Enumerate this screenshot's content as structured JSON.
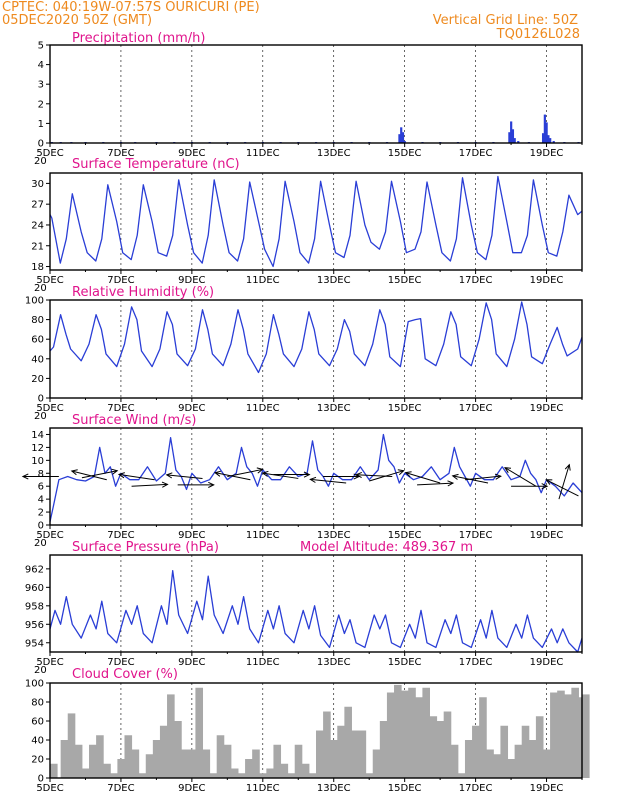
{
  "header": {
    "left_line1": "CPTEC:   040:19W-07:57S   OURICURI (PE)",
    "left_line2": "05DEC2020 50Z (GMT)",
    "right_line1": "Vertical Grid Line: 50Z",
    "right_line2": "TQ0126L028"
  },
  "colors": {
    "header": "#ee8a1f",
    "title": "#e0148c",
    "series": "#2a3ed6",
    "cloud": "#a8a8a8",
    "arrows": "#000000"
  },
  "x_tick_labels": [
    "5DEC",
    "7DEC",
    "9DEC",
    "11DEC",
    "13DEC",
    "15DEC",
    "17DEC",
    "19DEC"
  ],
  "panel_stub_label": "20",
  "chart_data": [
    {
      "id": "precip",
      "type": "bar",
      "title": "Precipitation (mm/h)",
      "x_unit": "days since 5DEC 00Z",
      "xlim": [
        0,
        15
      ],
      "ylim": [
        0,
        5
      ],
      "yticks": [
        0,
        1,
        2,
        3,
        4,
        5
      ],
      "x": [
        0.05,
        0.3,
        0.6,
        1.0,
        1.5,
        2.0,
        2.4,
        3.0,
        3.5,
        4.0,
        4.5,
        5.0,
        5.5,
        6.0,
        6.5,
        7.0,
        7.5,
        8.0,
        8.5,
        9.0,
        9.5,
        9.85,
        9.9,
        9.95,
        10.0,
        10.5,
        11.0,
        11.5,
        12.0,
        12.5,
        12.95,
        13.0,
        13.05,
        13.1,
        13.2,
        13.5,
        13.9,
        13.95,
        14.0,
        14.05,
        14.1,
        14.2,
        14.5,
        14.9
      ],
      "values": [
        0.05,
        0.05,
        0.05,
        0.05,
        0.05,
        0.05,
        0.05,
        0.05,
        0.05,
        0.05,
        0.05,
        0.05,
        0.05,
        0.05,
        0.05,
        0.05,
        0.05,
        0.05,
        0.05,
        0.05,
        0.05,
        0.45,
        0.8,
        0.55,
        0.1,
        0.05,
        0.05,
        0.05,
        0.05,
        0.05,
        0.55,
        1.1,
        0.7,
        0.25,
        0.1,
        0.05,
        0.5,
        1.45,
        1.05,
        0.4,
        0.25,
        0.1,
        0.05,
        0.05
      ]
    },
    {
      "id": "temp",
      "type": "line",
      "title": "Surface Temperature (nC)",
      "x_unit": "days since 5DEC 00Z",
      "xlim": [
        0,
        15
      ],
      "ylim": [
        17.5,
        31.5
      ],
      "yticks": [
        18,
        21,
        24,
        27,
        30
      ],
      "series": [
        {
          "x": [
            0.0,
            0.05,
            0.29,
            0.46,
            0.63,
            0.88,
            1.05,
            1.29,
            1.46,
            1.63,
            1.88,
            2.05,
            2.29,
            2.46,
            2.63,
            2.88,
            3.05,
            3.29,
            3.46,
            3.63,
            3.88,
            4.05,
            4.29,
            4.46,
            4.63,
            4.88,
            5.05,
            5.29,
            5.46,
            5.63,
            5.88,
            6.05,
            6.29,
            6.46,
            6.63,
            6.88,
            7.05,
            7.29,
            7.46,
            7.63,
            7.88,
            8.05,
            8.29,
            8.46,
            8.63,
            8.88,
            9.05,
            9.29,
            9.46,
            9.63,
            9.88,
            10.05,
            10.29,
            10.46,
            10.63,
            10.88,
            11.05,
            11.29,
            11.46,
            11.63,
            11.88,
            12.05,
            12.29,
            12.46,
            12.63,
            12.88,
            13.05,
            13.29,
            13.46,
            13.63,
            13.88,
            14.05,
            14.29,
            14.46,
            14.63,
            14.88,
            15.0
          ],
          "values": [
            25.5,
            25.0,
            18.5,
            22.0,
            28.5,
            23.0,
            20.0,
            18.8,
            22.0,
            29.8,
            24.5,
            20.0,
            19.0,
            22.5,
            29.8,
            24.5,
            20.0,
            19.5,
            22.5,
            30.5,
            24.0,
            20.0,
            18.5,
            22.5,
            30.5,
            24.0,
            20.0,
            18.8,
            22.0,
            30.2,
            24.5,
            20.5,
            18.0,
            22.0,
            30.3,
            24.5,
            20.0,
            18.5,
            22.0,
            30.3,
            24.0,
            20.0,
            19.3,
            22.5,
            30.3,
            24.0,
            21.5,
            20.5,
            23.0,
            30.3,
            24.5,
            20.0,
            20.5,
            23.0,
            30.2,
            24.0,
            20.0,
            18.8,
            22.0,
            30.8,
            24.0,
            20.0,
            19.0,
            22.5,
            31.0,
            24.5,
            20.0,
            20.0,
            22.5,
            30.5,
            24.0,
            20.0,
            19.5,
            23.0,
            28.3,
            25.5,
            26.0
          ]
        }
      ]
    },
    {
      "id": "rh",
      "type": "line",
      "title": "Relative Humidity (%)",
      "x_unit": "days since 5DEC 00Z",
      "xlim": [
        0,
        15
      ],
      "ylim": [
        0,
        100
      ],
      "yticks": [
        0,
        20,
        40,
        60,
        80,
        100
      ],
      "series": [
        {
          "x": [
            0.0,
            0.1,
            0.3,
            0.45,
            0.58,
            0.88,
            1.1,
            1.3,
            1.45,
            1.58,
            1.88,
            2.1,
            2.3,
            2.45,
            2.58,
            2.88,
            3.1,
            3.3,
            3.45,
            3.58,
            3.88,
            4.1,
            4.3,
            4.45,
            4.58,
            4.88,
            5.1,
            5.3,
            5.45,
            5.58,
            5.88,
            6.1,
            6.3,
            6.45,
            6.58,
            6.88,
            7.1,
            7.3,
            7.45,
            7.58,
            7.88,
            8.1,
            8.3,
            8.45,
            8.58,
            8.88,
            9.1,
            9.3,
            9.45,
            9.58,
            9.88,
            10.1,
            10.3,
            10.45,
            10.58,
            10.88,
            11.1,
            11.3,
            11.45,
            11.58,
            11.88,
            12.1,
            12.3,
            12.45,
            12.58,
            12.88,
            13.1,
            13.3,
            13.45,
            13.58,
            13.88,
            14.1,
            14.3,
            14.45,
            14.58,
            14.88,
            15.0
          ],
          "values": [
            48.0,
            52.0,
            85.0,
            65.0,
            50.0,
            38.0,
            55.0,
            85.0,
            70.0,
            45.0,
            32.0,
            55.0,
            93.0,
            80.0,
            48.0,
            32.0,
            50.0,
            88.0,
            75.0,
            45.0,
            33.0,
            50.0,
            90.0,
            70.0,
            45.0,
            33.0,
            55.0,
            90.0,
            70.0,
            45.0,
            26.0,
            45.0,
            85.0,
            65.0,
            45.0,
            32.0,
            50.0,
            88.0,
            70.0,
            45.0,
            33.0,
            50.0,
            80.0,
            68.0,
            45.0,
            33.0,
            55.0,
            90.0,
            75.0,
            42.0,
            32.0,
            78.0,
            80.0,
            81.0,
            40.0,
            33.0,
            55.0,
            88.0,
            75.0,
            42.0,
            33.0,
            60.0,
            97.0,
            80.0,
            45.0,
            32.0,
            60.0,
            98.0,
            75.0,
            42.0,
            35.0,
            55.0,
            72.0,
            55.0,
            43.0,
            50.0,
            62.0
          ]
        }
      ]
    },
    {
      "id": "wind",
      "type": "line",
      "title": "Surface Wind (m/s)",
      "x_unit": "days since 5DEC 00Z",
      "xlim": [
        0,
        15
      ],
      "ylim": [
        0,
        15
      ],
      "yticks": [
        0,
        2,
        4,
        6,
        8,
        10,
        12,
        14
      ],
      "series": [
        {
          "x": [
            0.0,
            0.1,
            0.25,
            0.5,
            0.75,
            1.0,
            1.25,
            1.4,
            1.55,
            1.7,
            1.85,
            2.0,
            2.25,
            2.5,
            2.75,
            3.0,
            3.25,
            3.4,
            3.55,
            3.7,
            3.85,
            4.0,
            4.25,
            4.5,
            4.75,
            5.0,
            5.25,
            5.4,
            5.55,
            5.7,
            5.85,
            6.0,
            6.25,
            6.5,
            6.75,
            7.0,
            7.25,
            7.4,
            7.55,
            7.7,
            7.85,
            8.0,
            8.25,
            8.5,
            8.75,
            9.0,
            9.25,
            9.4,
            9.55,
            9.7,
            9.85,
            10.0,
            10.25,
            10.5,
            10.75,
            11.0,
            11.25,
            11.4,
            11.55,
            11.7,
            11.85,
            12.0,
            12.25,
            12.5,
            12.75,
            13.0,
            13.25,
            13.4,
            13.55,
            13.7,
            13.85,
            14.0,
            14.25,
            14.5,
            14.75,
            15.0
          ],
          "values": [
            0.5,
            3.0,
            7.0,
            7.5,
            7.0,
            6.8,
            7.5,
            12.0,
            8.0,
            9.0,
            6.0,
            8.0,
            7.0,
            7.0,
            9.0,
            6.8,
            8.0,
            13.5,
            8.5,
            7.5,
            5.5,
            8.0,
            6.5,
            7.0,
            9.0,
            7.0,
            8.0,
            12.0,
            9.0,
            8.0,
            6.0,
            8.5,
            7.0,
            7.0,
            9.0,
            7.5,
            8.0,
            13.0,
            8.5,
            7.5,
            6.0,
            8.0,
            7.0,
            7.0,
            9.0,
            7.0,
            8.5,
            14.0,
            10.0,
            9.0,
            6.5,
            8.0,
            7.0,
            7.5,
            9.0,
            7.0,
            8.0,
            12.0,
            9.0,
            7.5,
            6.0,
            8.0,
            7.0,
            7.0,
            9.0,
            7.0,
            7.5,
            10.0,
            8.0,
            7.0,
            5.0,
            7.0,
            6.0,
            4.5,
            6.5,
            5.0
          ]
        }
      ],
      "wind_vectors": {
        "x": [
          0.25,
          0.9,
          1.6,
          2.3,
          2.95,
          3.6,
          4.3,
          5.0,
          5.65,
          6.3,
          7.0,
          7.7,
          8.35,
          9.0,
          9.65,
          10.35,
          11.0,
          11.7,
          12.35,
          13.0,
          13.7,
          14.35,
          14.9
        ],
        "u": [
          -1.0,
          1.0,
          -1.0,
          1.0,
          -1.0,
          1.0,
          -1.0,
          1.0,
          -1.0,
          1.0,
          -1.0,
          1.0,
          -1.0,
          1.0,
          -1.0,
          1.0,
          -1.0,
          1.0,
          -1.0,
          1.0,
          -1.0,
          0.3,
          -1.0
        ],
        "v": [
          0.0,
          0.2,
          0.25,
          0.05,
          0.15,
          0.0,
          0.1,
          0.2,
          0.2,
          0.0,
          0.15,
          0.0,
          0.1,
          0.3,
          0.05,
          0.05,
          0.3,
          0.1,
          0.2,
          0.0,
          0.6,
          1.0,
          0.5
        ],
        "y": [
          7.5,
          7.3,
          7.0,
          6.0,
          7.0,
          6.2,
          7.2,
          7.5,
          7.0,
          7.8,
          7.2,
          7.5,
          6.5,
          6.8,
          7.5,
          6.2,
          6.5,
          7.0,
          6.5,
          6.0,
          6.0,
          4.0,
          4.5
        ]
      }
    },
    {
      "id": "pres",
      "type": "line",
      "title": "Surface Pressure (hPa)",
      "annotation": "Model Altitude: 489.367 m",
      "x_unit": "days since 5DEC 00Z",
      "xlim": [
        0,
        15
      ],
      "ylim": [
        953.0,
        963.5
      ],
      "yticks": [
        954,
        956,
        958,
        960,
        962
      ],
      "series": [
        {
          "x": [
            0.0,
            0.14,
            0.3,
            0.46,
            0.63,
            0.88,
            1.14,
            1.3,
            1.46,
            1.63,
            1.88,
            2.14,
            2.3,
            2.46,
            2.63,
            2.88,
            3.14,
            3.3,
            3.46,
            3.63,
            3.88,
            4.14,
            4.3,
            4.46,
            4.63,
            4.88,
            5.14,
            5.3,
            5.46,
            5.63,
            5.88,
            6.14,
            6.3,
            6.46,
            6.63,
            6.88,
            7.14,
            7.3,
            7.46,
            7.63,
            7.88,
            8.14,
            8.3,
            8.46,
            8.63,
            8.88,
            9.14,
            9.3,
            9.46,
            9.63,
            9.88,
            10.14,
            10.3,
            10.46,
            10.63,
            10.88,
            11.14,
            11.3,
            11.46,
            11.63,
            11.88,
            12.14,
            12.3,
            12.46,
            12.63,
            12.88,
            13.14,
            13.3,
            13.46,
            13.63,
            13.88,
            14.14,
            14.3,
            14.46,
            14.63,
            14.88,
            15.0
          ],
          "values": [
            955.5,
            957.5,
            956.0,
            959.0,
            956.0,
            954.5,
            957.0,
            955.5,
            958.5,
            955.0,
            954.0,
            957.5,
            956.0,
            958.0,
            955.0,
            954.0,
            958.0,
            956.0,
            961.8,
            957.0,
            955.0,
            958.5,
            956.5,
            961.2,
            957.0,
            955.0,
            958.0,
            956.0,
            959.0,
            955.5,
            954.0,
            957.5,
            955.5,
            958.0,
            955.0,
            954.0,
            957.5,
            955.5,
            958.0,
            954.8,
            953.5,
            957.0,
            955.0,
            956.5,
            954.0,
            953.5,
            957.0,
            955.5,
            957.0,
            954.0,
            953.5,
            956.0,
            954.5,
            957.5,
            954.0,
            953.5,
            956.5,
            955.0,
            957.0,
            954.0,
            953.5,
            956.5,
            954.5,
            957.5,
            954.5,
            953.5,
            956.0,
            954.5,
            957.0,
            954.5,
            953.5,
            955.5,
            954.0,
            955.5,
            954.0,
            953.0,
            954.5
          ]
        }
      ]
    },
    {
      "id": "cloud",
      "type": "area",
      "title": "Cloud Cover (%)",
      "x_unit": "days since 5DEC 00Z",
      "xlim": [
        0,
        15
      ],
      "ylim": [
        0,
        100
      ],
      "yticks": [
        0,
        20,
        40,
        60,
        80,
        100
      ],
      "x": [
        0.0,
        0.3,
        0.5,
        0.7,
        0.9,
        1.1,
        1.3,
        1.5,
        1.7,
        1.9,
        2.1,
        2.3,
        2.5,
        2.7,
        2.9,
        3.1,
        3.3,
        3.5,
        3.7,
        3.9,
        4.1,
        4.3,
        4.5,
        4.7,
        4.9,
        5.1,
        5.3,
        5.5,
        5.7,
        5.9,
        6.1,
        6.3,
        6.5,
        6.7,
        6.9,
        7.1,
        7.3,
        7.5,
        7.7,
        7.9,
        8.1,
        8.3,
        8.5,
        8.7,
        8.9,
        9.1,
        9.3,
        9.5,
        9.7,
        9.9,
        10.1,
        10.3,
        10.5,
        10.7,
        10.9,
        11.1,
        11.3,
        11.5,
        11.7,
        11.9,
        12.1,
        12.3,
        12.5,
        12.7,
        12.9,
        13.1,
        13.3,
        13.5,
        13.7,
        13.9,
        14.1,
        14.3,
        14.5,
        14.7,
        14.9,
        15.0
      ],
      "values": [
        15,
        40,
        68,
        35,
        10,
        35,
        45,
        15,
        5,
        20,
        45,
        30,
        5,
        25,
        40,
        55,
        88,
        60,
        30,
        30,
        95,
        30,
        5,
        45,
        35,
        10,
        5,
        20,
        30,
        5,
        10,
        35,
        15,
        5,
        35,
        15,
        5,
        50,
        70,
        40,
        55,
        75,
        50,
        50,
        5,
        30,
        60,
        90,
        98,
        92,
        95,
        85,
        95,
        65,
        60,
        70,
        35,
        5,
        40,
        55,
        85,
        30,
        25,
        55,
        20,
        35,
        55,
        40,
        65,
        30,
        90,
        92,
        88,
        95,
        85,
        88
      ]
    }
  ]
}
